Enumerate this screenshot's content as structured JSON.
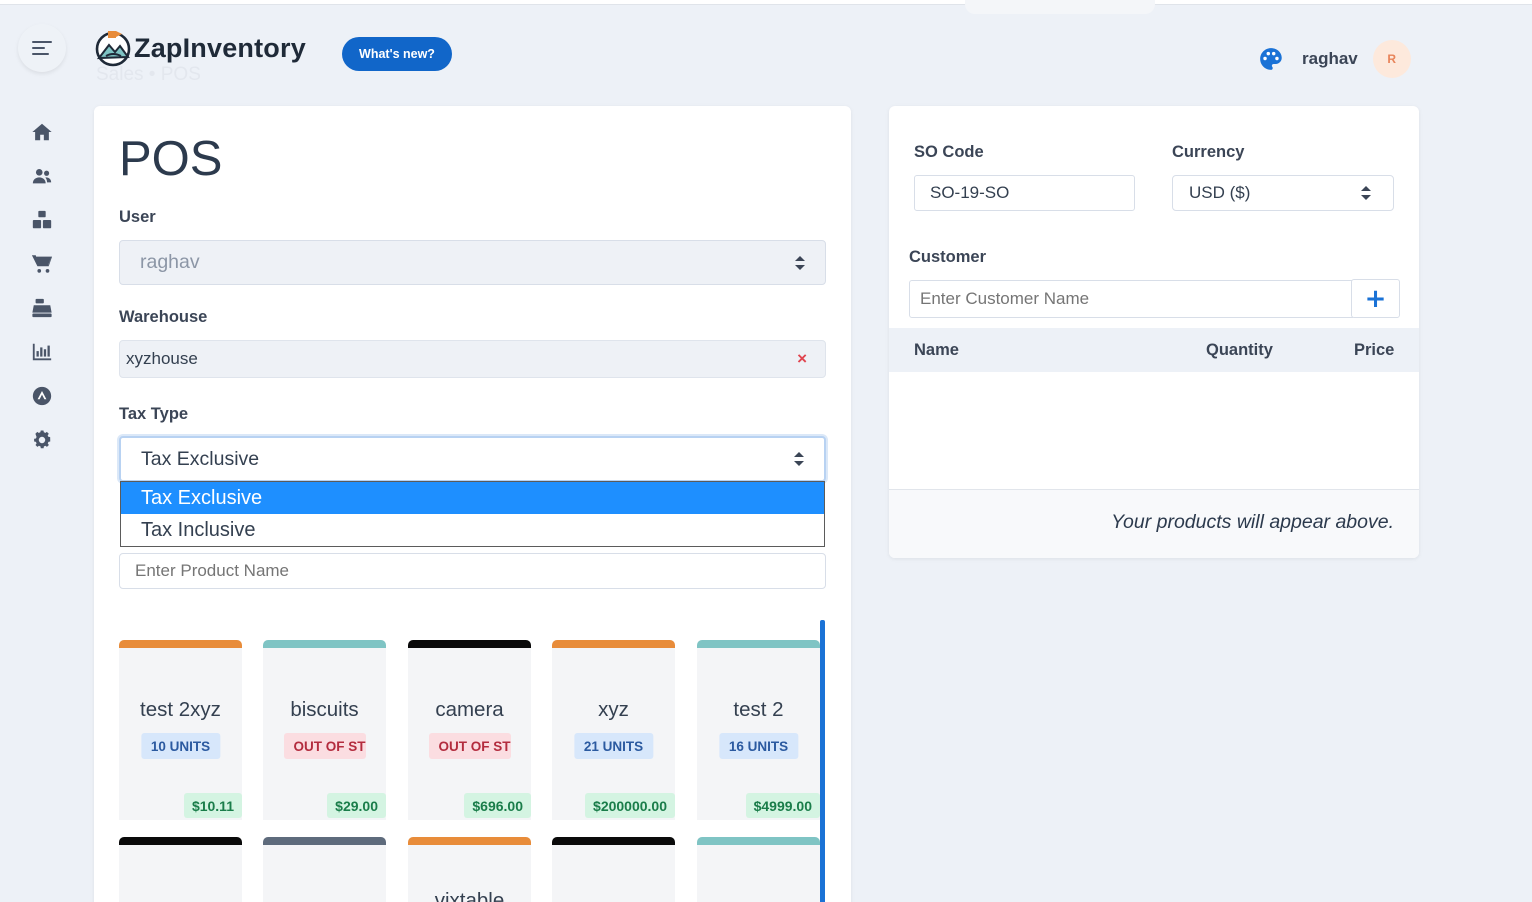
{
  "app": {
    "brand": "ZapInventory",
    "whats_new": "What's new?",
    "breadcrumb_ghost": "Sales   •   POS"
  },
  "user": {
    "name": "raghav",
    "avatar_initial": "R"
  },
  "sidebar": {
    "items": [
      {
        "icon": "home-icon"
      },
      {
        "icon": "users-icon"
      },
      {
        "icon": "boxes-icon"
      },
      {
        "icon": "cart-icon"
      },
      {
        "icon": "cash-register-icon"
      },
      {
        "icon": "chart-bar-icon"
      },
      {
        "icon": "app-store-icon"
      },
      {
        "icon": "gear-icon"
      }
    ]
  },
  "pos": {
    "title": "POS",
    "user_label": "User",
    "user_value": "raghav",
    "warehouse_label": "Warehouse",
    "warehouse_value": "xyzhouse",
    "warehouse_clear": "×",
    "tax_label": "Tax Type",
    "tax_value": "Tax Exclusive",
    "tax_options": [
      "Tax Exclusive",
      "Tax Inclusive"
    ],
    "product_placeholder": "Enter Product Name"
  },
  "products": [
    {
      "name": "test 2xyz",
      "units": "10 UNITS",
      "price": "$10.11",
      "color": "#e88c3a",
      "status": "ok"
    },
    {
      "name": "biscuits",
      "units": "OUT OF ST",
      "price": "$29.00",
      "color": "#7fc4c4",
      "status": "out"
    },
    {
      "name": "camera",
      "units": "OUT OF ST",
      "price": "$696.00",
      "color": "#0a0a0a",
      "status": "out"
    },
    {
      "name": "xyz",
      "units": "21 UNITS",
      "price": "$200000.00",
      "color": "#e88c3a",
      "status": "ok"
    },
    {
      "name": "test 2",
      "units": "16 UNITS",
      "price": "$4999.00",
      "color": "#7fc4c4",
      "status": "ok"
    }
  ],
  "products_row2": [
    {
      "color": "#0a0a0a",
      "name": ""
    },
    {
      "color": "#5e6b7c",
      "name": ""
    },
    {
      "color": "#e88c3a",
      "name": "vixtable"
    },
    {
      "color": "#0a0a0a",
      "name": ""
    },
    {
      "color": "#7fc4c4",
      "name": ""
    }
  ],
  "order": {
    "so_code_label": "SO Code",
    "so_code_value": "SO-19-SO",
    "currency_label": "Currency",
    "currency_value": "USD ($)",
    "customer_label": "Customer",
    "customer_placeholder": "Enter Customer Name",
    "add_symbol": "+",
    "columns": [
      "Name",
      "Quantity",
      "Price"
    ],
    "empty_message": "Your products will appear above."
  }
}
